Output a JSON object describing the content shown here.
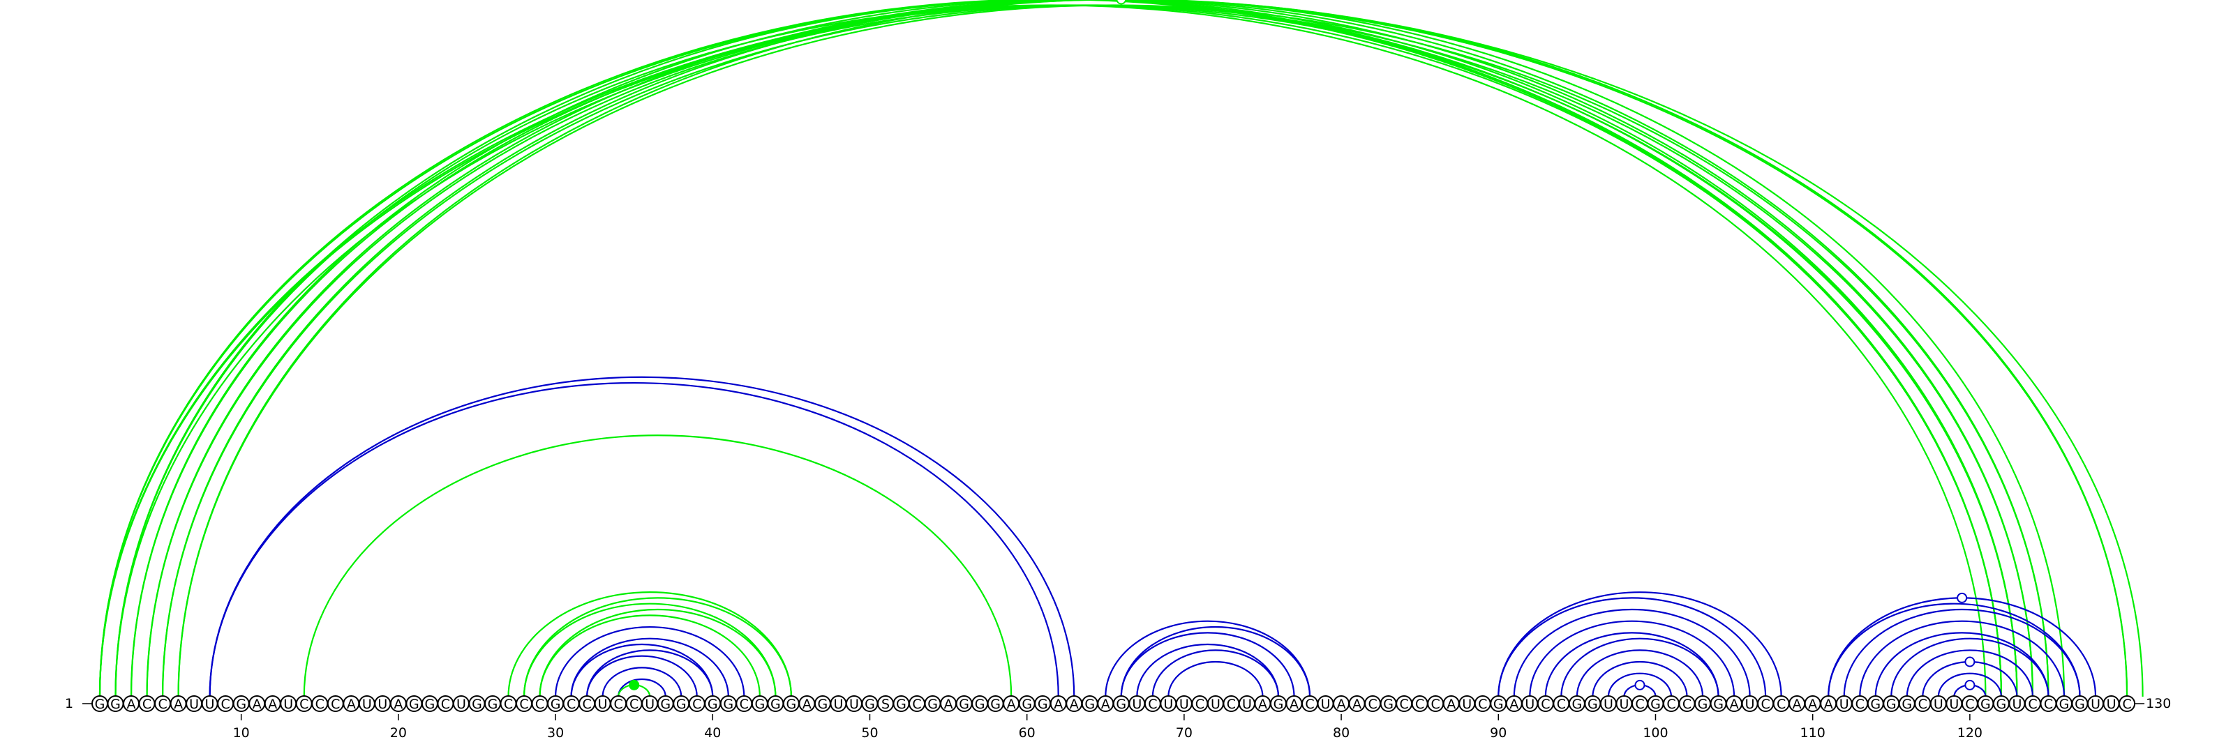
{
  "sequence": "GGACCAUUCGAAUCCCAUUAGGCUGGCCCGCCUCCUGGCGGCGGGAGUUGSGCGAGGGAGGAAGAGUCUUCUCUAGACUAACGCCCAUCGAUCCGGUUCGCCGGAUCCAAAUCGGGCUUCGGUCCGGUUC",
  "labels": {
    "start": "1 –",
    "end": "–130"
  },
  "ticks": [
    10,
    20,
    30,
    40,
    50,
    60,
    70,
    80,
    90,
    100,
    110,
    120
  ],
  "colors": {
    "green": "#00ee00",
    "blue": "#0000cc",
    "nucleotide_stroke": "#000000"
  },
  "arc_groups": [
    {
      "color": "green",
      "pairs": [
        [
          1,
          122
        ],
        [
          1,
          123
        ],
        [
          2,
          121
        ],
        [
          2,
          122
        ],
        [
          3,
          122
        ],
        [
          3,
          123
        ],
        [
          4,
          123
        ],
        [
          4,
          124
        ],
        [
          5,
          124
        ],
        [
          5,
          125
        ],
        [
          6,
          125
        ],
        [
          6,
          126
        ]
      ]
    },
    {
      "color": "green",
      "pairs": [
        [
          1,
          130
        ],
        [
          1,
          131
        ],
        [
          2,
          130
        ]
      ]
    },
    {
      "color": "blue",
      "pairs": [
        [
          8,
          62
        ],
        [
          8,
          63
        ]
      ]
    },
    {
      "color": "green",
      "pairs": [
        [
          14,
          59
        ]
      ]
    },
    {
      "color": "green",
      "pairs": [
        [
          27,
          45
        ],
        [
          28,
          45
        ],
        [
          28,
          44
        ],
        [
          29,
          44
        ],
        [
          29,
          43
        ]
      ]
    },
    {
      "color": "blue",
      "pairs": [
        [
          30,
          42
        ],
        [
          31,
          41
        ],
        [
          31,
          40
        ],
        [
          32,
          40
        ],
        [
          32,
          39
        ],
        [
          33,
          38
        ],
        [
          34,
          37
        ]
      ]
    },
    {
      "color": "green",
      "pairs": [
        [
          34,
          36
        ]
      ]
    },
    {
      "color": "blue",
      "pairs": [
        [
          65,
          78
        ],
        [
          66,
          78
        ],
        [
          66,
          77
        ],
        [
          67,
          76
        ],
        [
          68,
          76
        ],
        [
          69,
          75
        ]
      ]
    },
    {
      "color": "blue",
      "pairs": [
        [
          90,
          107
        ],
        [
          90,
          108
        ],
        [
          91,
          106
        ],
        [
          92,
          105
        ],
        [
          93,
          104
        ],
        [
          94,
          104
        ],
        [
          95,
          103
        ],
        [
          96,
          102
        ],
        [
          97,
          101
        ],
        [
          98,
          100
        ]
      ]
    },
    {
      "color": "blue",
      "pairs": [
        [
          111,
          127
        ],
        [
          111,
          128
        ],
        [
          112,
          127
        ],
        [
          113,
          126
        ],
        [
          114,
          125
        ],
        [
          115,
          125
        ],
        [
          116,
          124
        ],
        [
          117,
          123
        ],
        [
          118,
          122
        ],
        [
          119,
          121
        ]
      ]
    }
  ],
  "markers": [
    {
      "color": "green",
      "filled": true,
      "arc": [
        34,
        36
      ]
    },
    {
      "color": "green",
      "filled": false,
      "arc": [
        1,
        131
      ]
    },
    {
      "color": "blue",
      "filled": false,
      "arc": [
        98,
        100
      ]
    },
    {
      "color": "blue",
      "filled": false,
      "arc": [
        119,
        121
      ]
    },
    {
      "color": "blue",
      "filled": false,
      "arc": [
        117,
        123
      ]
    },
    {
      "color": "blue",
      "filled": false,
      "arc": [
        111,
        128
      ]
    }
  ]
}
